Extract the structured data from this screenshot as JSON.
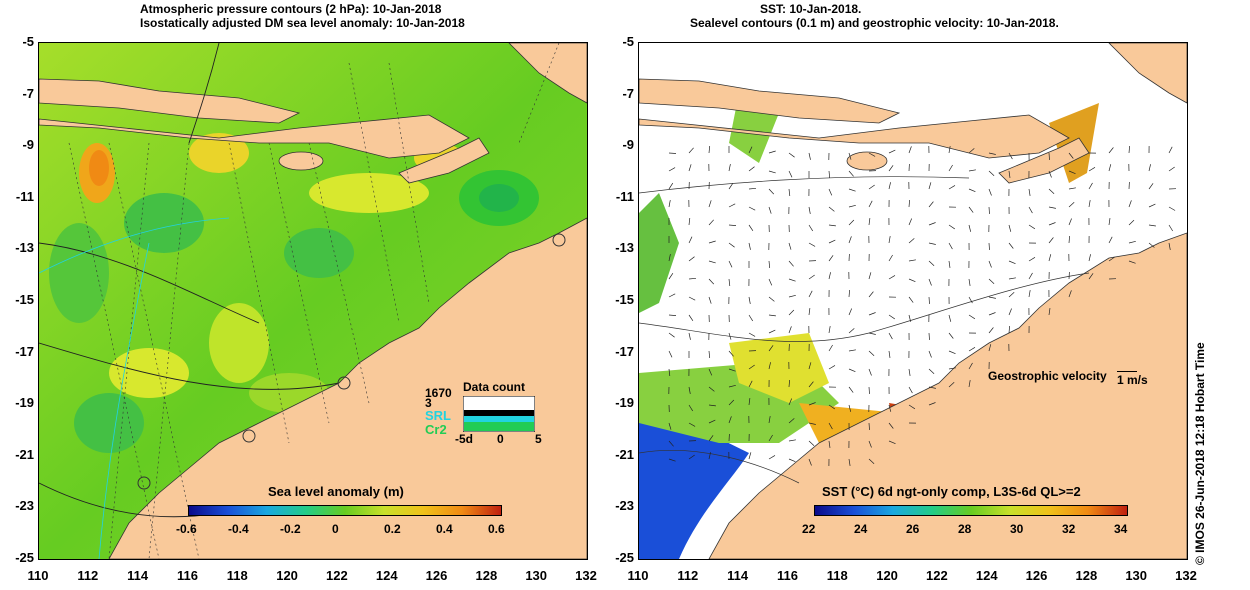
{
  "left_panel": {
    "title_line1": "Atmospheric pressure contours (2 hPa): 10-Jan-2018",
    "title_line2": "Isostatically adjusted DM sea level anomaly: 10-Jan-2018",
    "colorbar_title": "Sea level anomaly (m)",
    "colorbar_ticks": [
      "-0.6",
      "-0.4",
      "-0.2",
      "0",
      "0.2",
      "0.4",
      "0.6"
    ],
    "legend": {
      "title": "Data count",
      "max": "1670",
      "min": "3",
      "series": [
        "SRL",
        "Cr2"
      ],
      "axis_ticks": [
        "-5d",
        "0",
        "5"
      ],
      "colors": {
        "SRL": "#22d3e0",
        "Cr2": "#22cc55"
      }
    }
  },
  "right_panel": {
    "title_line1": "SST: 10-Jan-2018.",
    "title_line2": "Sealevel contours (0.1 m) and geostrophic velocity: 10-Jan-2018.",
    "velocity_label": "Geostrophic velocity",
    "velocity_unit": "1 m/s",
    "colorbar_title": "SST (°C) 6d ngt-only comp, L3S-6d QL>=2",
    "colorbar_ticks": [
      "22",
      "24",
      "26",
      "28",
      "30",
      "32",
      "34"
    ]
  },
  "y_ticks": [
    "-5",
    "-7",
    "-9",
    "-11",
    "-13",
    "-15",
    "-17",
    "-19",
    "-21",
    "-23",
    "-25"
  ],
  "x_ticks": [
    "110",
    "112",
    "114",
    "116",
    "118",
    "120",
    "122",
    "124",
    "126",
    "128",
    "130",
    "132"
  ],
  "footer_note": "© IMOS 26-Jun-2018 12:18 Hobart Time",
  "colors": {
    "land": "#f9c99a",
    "sla_mid": "#55cc22",
    "sst_low": "#1a4fd8",
    "sst_high": "#d04a10"
  }
}
